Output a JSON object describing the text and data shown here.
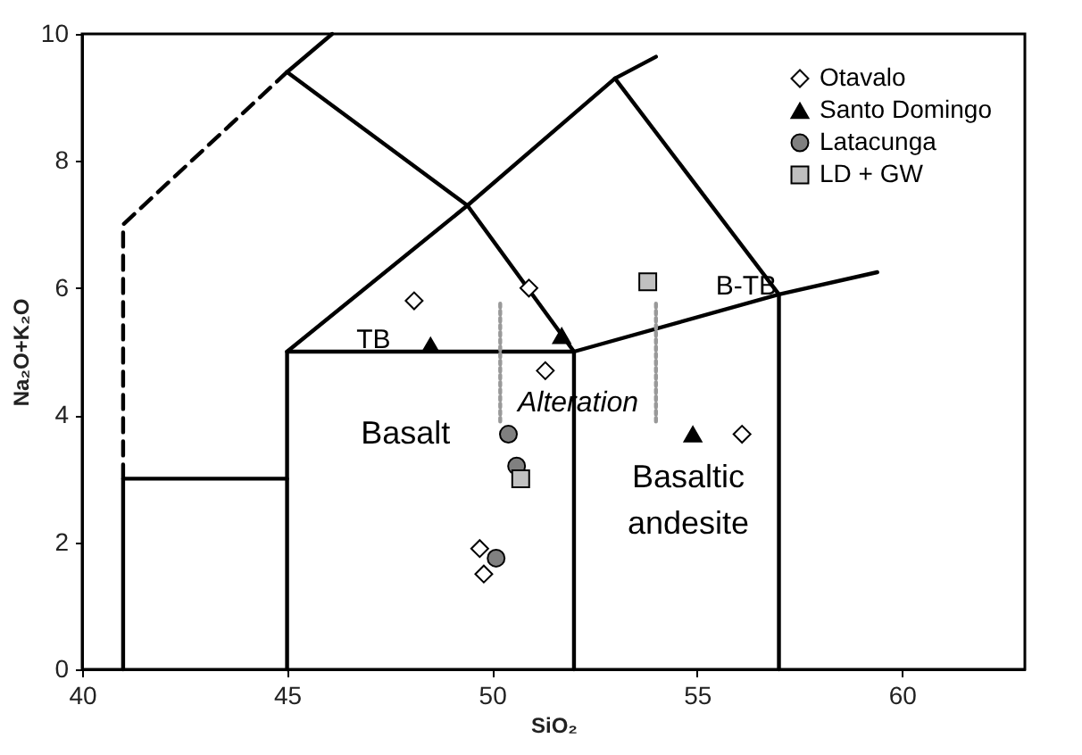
{
  "chart_data": {
    "type": "scatter",
    "xlabel": "SiO₂",
    "ylabel": "Na₂O+K₂O",
    "xlim": [
      40,
      63
    ],
    "ylim": [
      0,
      10
    ],
    "xticks": [
      40,
      45,
      50,
      55,
      60
    ],
    "yticks": [
      0,
      2,
      4,
      6,
      8,
      10
    ],
    "grid": false,
    "legend": "top right",
    "series": [
      {
        "type": "line",
        "color": "#000000",
        "line_style": "dashed",
        "x": [
          41,
          41,
          45
        ],
        "values": [
          3,
          7,
          9.4
        ]
      },
      {
        "type": "line",
        "color": "#000000",
        "line_style": "solid",
        "x": [
          41,
          41,
          45
        ],
        "values": [
          0,
          3,
          3
        ]
      },
      {
        "type": "line",
        "color": "#000000",
        "line_style": "solid",
        "x": [
          45,
          45,
          52,
          52
        ],
        "values": [
          0,
          5,
          5,
          0
        ]
      },
      {
        "type": "line",
        "color": "#000000",
        "line_style": "solid",
        "x": [
          45,
          49.4,
          53,
          54
        ],
        "values": [
          5,
          7.3,
          9.3,
          9.64
        ]
      },
      {
        "type": "line",
        "color": "#000000",
        "line_style": "solid",
        "x": [
          45,
          46.1
        ],
        "values": [
          9.4,
          10
        ]
      },
      {
        "type": "line",
        "color": "#000000",
        "line_style": "solid",
        "x": [
          45,
          49.4,
          52
        ],
        "values": [
          9.4,
          7.3,
          5
        ]
      },
      {
        "type": "line",
        "color": "#000000",
        "line_style": "solid",
        "x": [
          52,
          57,
          59.4
        ],
        "values": [
          5,
          5.9,
          6.25
        ]
      },
      {
        "type": "line",
        "color": "#000000",
        "line_style": "solid",
        "x": [
          53,
          57,
          57
        ],
        "values": [
          9.3,
          5.9,
          0
        ]
      },
      {
        "type": "line",
        "color": "#999999",
        "line_style": "dotted",
        "x": [
          50.2,
          50.2
        ],
        "values": [
          3.9,
          5.8
        ]
      },
      {
        "type": "line",
        "color": "#999999",
        "line_style": "dotted",
        "x": [
          54,
          54
        ],
        "values": [
          3.9,
          5.8
        ]
      },
      {
        "name": "Otavalo",
        "color": "#ffffff",
        "marker": "diamond",
        "x": [
          48.1,
          50.9,
          51.3,
          56.1,
          49.7,
          49.8
        ],
        "values": [
          5.8,
          6.0,
          4.7,
          3.7,
          1.9,
          1.5
        ]
      },
      {
        "name": "Santo Domingo",
        "color": "#000000",
        "marker": "triangle",
        "x": [
          48.5,
          51.7,
          54.9
        ],
        "values": [
          5.1,
          5.25,
          3.7
        ]
      },
      {
        "name": "Latacunga",
        "color": "#808080",
        "marker": "circle",
        "x": [
          50.4,
          50.6,
          50.1
        ],
        "values": [
          3.7,
          3.2,
          1.75
        ]
      },
      {
        "name": "LD + GW",
        "color": "#c0c0c0",
        "marker": "square",
        "x": [
          50.7,
          53.8
        ],
        "values": [
          3.0,
          6.1
        ]
      }
    ],
    "annotations": [
      "TB",
      {
        "text": "B-TB",
        "x": 56.2,
        "y": 5.9
      },
      "Basalt",
      "Basaltic andesite",
      {
        "text": "Alteration",
        "x": 52.1,
        "y": 4.2
      }
    ]
  }
}
